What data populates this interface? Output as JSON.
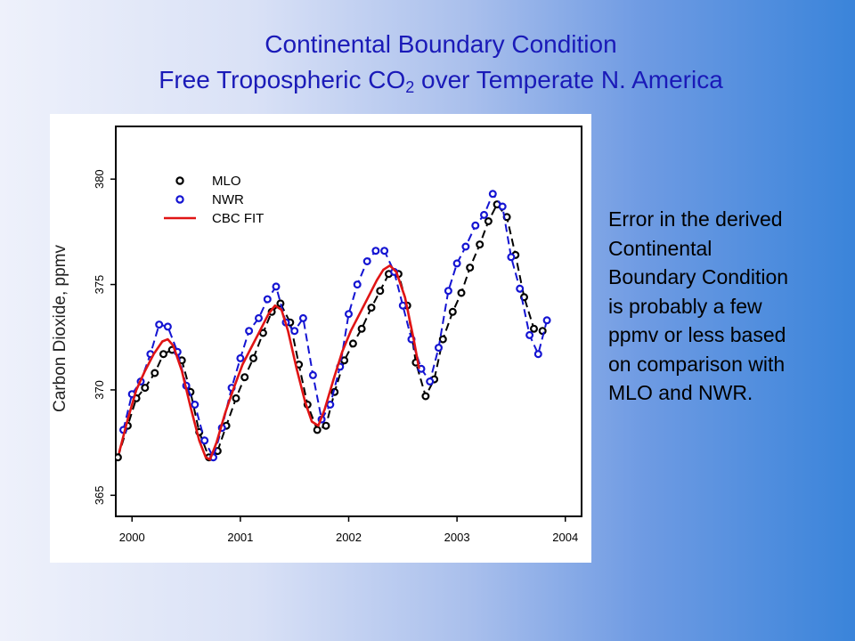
{
  "slide": {
    "title_line1": "Continental Boundary Condition",
    "title_line2_pre": "Free Tropospheric CO",
    "title_line2_sub": "2",
    "title_line2_post": " over Temperate N. America",
    "side_text": "Error in the derived\nContinental\nBoundary Condition\nis  probably a few\nppmv or less based\non comparison with\nMLO and NWR."
  },
  "colors": {
    "title": "#1a1ab8",
    "mlo": "#000000",
    "nwr": "#1414d2",
    "cbc": "#e01414"
  },
  "chart_data": {
    "type": "line",
    "xlabel": "",
    "ylabel": "Carbon Dioxide, ppmv",
    "xlim": [
      1999.85,
      2004.15
    ],
    "ylim": [
      364.0,
      382.5
    ],
    "x_ticks": [
      2000,
      2001,
      2002,
      2003,
      2004
    ],
    "x_tick_labels": [
      "2000",
      "2001",
      "2002",
      "2003",
      "2004"
    ],
    "y_ticks": [
      365,
      370,
      375,
      380
    ],
    "y_tick_labels": [
      "365",
      "370",
      "375",
      "380"
    ],
    "grid": false,
    "legend_position": "top-left",
    "series": [
      {
        "name": "MLO",
        "style": "dashed-circles",
        "color": "#000000",
        "x": [
          1999.87,
          1999.96,
          2000.04,
          2000.12,
          2000.21,
          2000.29,
          2000.37,
          2000.46,
          2000.54,
          2000.62,
          2000.71,
          2000.79,
          2000.87,
          2000.96,
          2001.04,
          2001.12,
          2001.21,
          2001.29,
          2001.37,
          2001.46,
          2001.54,
          2001.62,
          2001.71,
          2001.79,
          2001.87,
          2001.96,
          2002.04,
          2002.12,
          2002.21,
          2002.29,
          2002.37,
          2002.46,
          2002.54,
          2002.62,
          2002.71,
          2002.79,
          2002.87,
          2002.96,
          2003.04,
          2003.12,
          2003.21,
          2003.29,
          2003.37,
          2003.46,
          2003.54,
          2003.62,
          2003.71,
          2003.79
        ],
        "y": [
          366.8,
          368.3,
          369.6,
          370.1,
          370.8,
          371.7,
          371.9,
          371.4,
          369.9,
          368.0,
          366.8,
          367.1,
          368.3,
          369.6,
          370.6,
          371.5,
          372.7,
          373.7,
          374.1,
          373.2,
          371.2,
          369.3,
          368.1,
          368.3,
          369.9,
          371.4,
          372.2,
          372.9,
          373.9,
          374.7,
          375.5,
          375.5,
          374.0,
          371.3,
          369.7,
          370.5,
          372.4,
          373.7,
          374.6,
          375.8,
          376.9,
          378.0,
          378.8,
          378.2,
          376.4,
          374.4,
          372.9,
          372.8
        ]
      },
      {
        "name": "NWR",
        "style": "dashed-circles",
        "color": "#1414d2",
        "x": [
          1999.92,
          2000.0,
          2000.08,
          2000.17,
          2000.25,
          2000.33,
          2000.42,
          2000.5,
          2000.58,
          2000.67,
          2000.75,
          2000.83,
          2000.92,
          2001.0,
          2001.08,
          2001.17,
          2001.25,
          2001.33,
          2001.42,
          2001.5,
          2001.58,
          2001.67,
          2001.75,
          2001.83,
          2001.92,
          2002.0,
          2002.08,
          2002.17,
          2002.25,
          2002.33,
          2002.42,
          2002.5,
          2002.58,
          2002.67,
          2002.75,
          2002.83,
          2002.92,
          2003.0,
          2003.08,
          2003.17,
          2003.25,
          2003.33,
          2003.42,
          2003.5,
          2003.58,
          2003.67,
          2003.75,
          2003.83
        ],
        "y": [
          368.1,
          369.8,
          370.4,
          371.7,
          373.1,
          373.0,
          371.8,
          370.2,
          369.3,
          367.6,
          366.8,
          368.2,
          370.1,
          371.5,
          372.8,
          373.4,
          374.3,
          374.9,
          373.2,
          372.8,
          373.4,
          370.7,
          368.6,
          369.3,
          371.1,
          373.6,
          375.0,
          376.1,
          376.6,
          376.6,
          375.6,
          374.0,
          372.4,
          371.0,
          370.4,
          372.0,
          374.7,
          376.0,
          376.8,
          377.8,
          378.3,
          379.3,
          378.7,
          376.3,
          374.8,
          372.6,
          371.7,
          373.3
        ]
      },
      {
        "name": "CBC FIT",
        "style": "solid",
        "color": "#e01414",
        "x": [
          1999.88,
          1999.96,
          2000.04,
          2000.12,
          2000.2,
          2000.28,
          2000.33,
          2000.38,
          2000.46,
          2000.54,
          2000.62,
          2000.68,
          2000.72,
          2000.78,
          2000.86,
          2000.94,
          2001.02,
          2001.1,
          2001.18,
          2001.26,
          2001.32,
          2001.38,
          2001.44,
          2001.52,
          2001.6,
          2001.66,
          2001.72,
          2001.78,
          2001.86,
          2001.94,
          2002.02,
          2002.1,
          2002.18,
          2002.26,
          2002.32,
          2002.38,
          2002.44,
          2002.52,
          2002.6,
          2002.65
        ],
        "y": [
          367.0,
          368.6,
          370.0,
          370.9,
          371.7,
          372.3,
          372.4,
          372.1,
          370.9,
          369.2,
          367.6,
          366.8,
          366.7,
          367.5,
          368.9,
          370.1,
          371.2,
          372.0,
          372.8,
          373.6,
          374.0,
          373.8,
          372.8,
          371.0,
          369.4,
          368.5,
          368.3,
          369.1,
          370.5,
          371.8,
          372.8,
          373.6,
          374.4,
          375.2,
          375.7,
          375.9,
          375.6,
          374.4,
          372.4,
          371.0
        ]
      }
    ]
  }
}
